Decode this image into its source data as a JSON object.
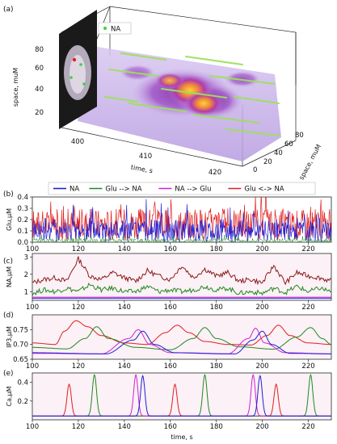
{
  "figure": {
    "colors": {
      "NA": "#1f1fd6",
      "Glu_to_NA": "#1e8a1e",
      "NA_to_Glu": "#d21fd2",
      "Glu_NA": "#e01e1e",
      "dark": "#8b1a1a"
    }
  },
  "chart_data": [
    {
      "panel": "(a)",
      "type": "scatter",
      "legend": "NA",
      "ylabel": "space, muM",
      "xlabel": "time, s",
      "zlabel": "space, muM",
      "yticks": [
        "20",
        "40",
        "60",
        "80"
      ],
      "xticks": [
        "400",
        "410",
        "420"
      ],
      "zticks": [
        "0",
        "20",
        "40",
        "60",
        "80"
      ]
    },
    {
      "panel": "(b)",
      "type": "line",
      "ylabel": "Glu,μM",
      "xlim": [
        100,
        230
      ],
      "ylim": [
        0,
        0.4
      ],
      "xticks": [
        100,
        120,
        140,
        160,
        180,
        200,
        220
      ],
      "yticks": [
        "0.0",
        "0.1",
        "0.2",
        "0.3",
        "0.4"
      ],
      "legend_position": "top",
      "series": [
        {
          "name": "NA",
          "color": "#1f1fd6"
        },
        {
          "name": "Glu --> NA",
          "color": "#1e8a1e"
        },
        {
          "name": "NA --> Glu",
          "color": "#d21fd2"
        },
        {
          "name": "Glu <-> NA",
          "color": "#e01e1e"
        }
      ],
      "note": "dense noisy traces; red peaks ~0.2-0.4, blue ~0.05-0.25"
    },
    {
      "panel": "(c)",
      "type": "line",
      "ylabel": "NA,μM",
      "xlim": [
        100,
        230
      ],
      "ylim": [
        0.5,
        3.2
      ],
      "xticks": [
        100,
        120,
        140,
        160,
        180,
        200,
        220
      ],
      "yticks": [
        "1",
        "2",
        "3"
      ],
      "series": [
        {
          "name": "Glu <-> NA",
          "x": [
            100,
            105,
            110,
            115,
            120,
            125,
            130,
            135,
            140,
            145,
            150,
            155,
            160,
            165,
            170,
            175,
            180,
            185,
            190,
            195,
            200,
            205,
            210,
            215,
            220,
            225,
            230
          ],
          "y": [
            1.5,
            1.7,
            1.8,
            1.6,
            2.9,
            1.9,
            1.7,
            2.1,
            1.8,
            1.6,
            2.2,
            1.9,
            1.7,
            2.5,
            1.8,
            2.3,
            1.9,
            2.1,
            1.6,
            1.7,
            1.5,
            2.5,
            1.5,
            2.1,
            1.9,
            1.8,
            1.6
          ]
        },
        {
          "name": "Glu --> NA",
          "x": [
            100,
            105,
            110,
            115,
            120,
            125,
            130,
            135,
            140,
            145,
            150,
            155,
            160,
            165,
            170,
            175,
            180,
            185,
            190,
            195,
            200,
            205,
            210,
            215,
            220,
            225,
            230
          ],
          "y": [
            0.9,
            1.1,
            1.0,
            1.2,
            1.0,
            1.4,
            1.1,
            1.2,
            1.0,
            1.0,
            1.3,
            1.0,
            1.1,
            1.0,
            1.1,
            1.3,
            1.1,
            1.2,
            0.9,
            1.0,
            0.9,
            1.2,
            0.95,
            1.3,
            1.0,
            1.2,
            1.0
          ]
        },
        {
          "name": "NA",
          "x": [
            100,
            230
          ],
          "y": [
            0.62,
            0.62
          ]
        },
        {
          "name": "NA --> Glu",
          "x": [
            100,
            230
          ],
          "y": [
            0.68,
            0.68
          ]
        }
      ]
    },
    {
      "panel": "(d)",
      "type": "line",
      "ylabel": "IP3,μM",
      "xlim": [
        100,
        230
      ],
      "ylim": [
        0.65,
        0.8
      ],
      "xticks": [
        100,
        120,
        140,
        160,
        180,
        200,
        220
      ],
      "yticks": [
        "0.65",
        "0.70",
        "0.75"
      ],
      "series": [
        {
          "name": "Glu <-> NA",
          "x": [
            100,
            110,
            114,
            119,
            124,
            130,
            140,
            150,
            158,
            163,
            168,
            175,
            185,
            195,
            202,
            207,
            212,
            220,
            230
          ],
          "y": [
            0.705,
            0.7,
            0.745,
            0.78,
            0.76,
            0.73,
            0.705,
            0.7,
            0.74,
            0.765,
            0.74,
            0.71,
            0.7,
            0.698,
            0.73,
            0.765,
            0.73,
            0.705,
            0.7
          ]
        },
        {
          "name": "Glu --> NA",
          "x": [
            100,
            115,
            123,
            128,
            133,
            145,
            160,
            170,
            175,
            180,
            190,
            205,
            215,
            221,
            226,
            230
          ],
          "y": [
            0.69,
            0.685,
            0.72,
            0.76,
            0.72,
            0.69,
            0.682,
            0.72,
            0.757,
            0.72,
            0.692,
            0.684,
            0.725,
            0.757,
            0.72,
            0.7
          ]
        },
        {
          "name": "NA --> Glu",
          "x": [
            100,
            130,
            142,
            146,
            151,
            160,
            185,
            194,
            197,
            201,
            210,
            230
          ],
          "y": [
            0.67,
            0.668,
            0.72,
            0.75,
            0.7,
            0.672,
            0.668,
            0.72,
            0.755,
            0.705,
            0.672,
            0.668
          ]
        },
        {
          "name": "NA",
          "x": [
            100,
            132,
            144,
            148,
            153,
            162,
            188,
            196,
            200,
            204,
            212,
            230
          ],
          "y": [
            0.672,
            0.668,
            0.715,
            0.745,
            0.7,
            0.672,
            0.668,
            0.715,
            0.745,
            0.7,
            0.67,
            0.668
          ]
        }
      ]
    },
    {
      "panel": "(e)",
      "type": "line",
      "ylabel": "Ca,μM",
      "xlabel": "time, s",
      "xlim": [
        100,
        230
      ],
      "ylim": [
        0,
        0.5
      ],
      "xticks": [
        100,
        120,
        140,
        160,
        180,
        200,
        220
      ],
      "yticks": [
        "0.2",
        "0.4"
      ],
      "series": [
        {
          "name": "Glu <-> NA",
          "peaks": [
            [
              116,
              0.38
            ],
            [
              162,
              0.38
            ],
            [
              206,
              0.38
            ]
          ]
        },
        {
          "name": "Glu --> NA",
          "peaks": [
            [
              127,
              0.48
            ],
            [
              175,
              0.48
            ],
            [
              221,
              0.48
            ]
          ]
        },
        {
          "name": "NA --> Glu",
          "peaks": [
            [
              145,
              0.48
            ],
            [
              196,
              0.48
            ]
          ]
        },
        {
          "name": "NA",
          "peaks": [
            [
              148,
              0.47
            ],
            [
              199,
              0.47
            ]
          ]
        }
      ],
      "baseline": 0.04
    }
  ]
}
